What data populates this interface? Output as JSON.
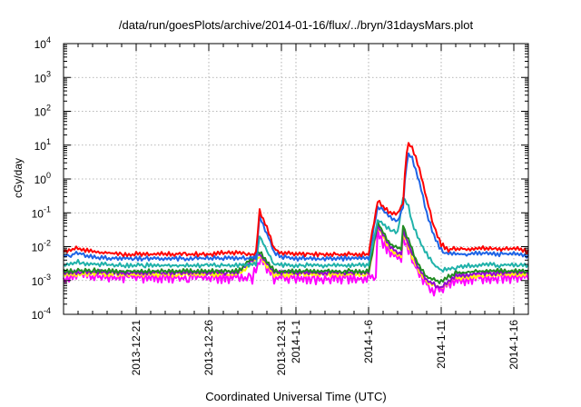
{
  "chart_data": {
    "type": "line",
    "title": "/data/run/goesPlots/archive/2014-01-16/flux/../bryn/31daysMars.plot",
    "xlabel": "Coordinated Universal Time (UTC)",
    "ylabel": "cGy/day",
    "yscale": "log",
    "ylim": [
      0.0001,
      10000
    ],
    "y_ticks": [
      {
        "value": 0.0001,
        "mantissa": "10",
        "exp": "-4"
      },
      {
        "value": 0.001,
        "mantissa": "10",
        "exp": "-3"
      },
      {
        "value": 0.01,
        "mantissa": "10",
        "exp": "-2"
      },
      {
        "value": 0.1,
        "mantissa": "10",
        "exp": "-1"
      },
      {
        "value": 1,
        "mantissa": "10",
        "exp": "0"
      },
      {
        "value": 10,
        "mantissa": "10",
        "exp": "1"
      },
      {
        "value": 100,
        "mantissa": "10",
        "exp": "2"
      },
      {
        "value": 1000,
        "mantissa": "10",
        "exp": "3"
      },
      {
        "value": 10000,
        "mantissa": "10",
        "exp": "4"
      }
    ],
    "xlim": [
      "2013-12-16",
      "2014-01-17"
    ],
    "x_ticks": [
      "2013-12-21",
      "2013-12-26",
      "2013-12-31",
      "2014-1-1",
      "2014-1-6",
      "2014-1-11",
      "2014-1-16"
    ],
    "x_tick_dates": [
      "2013-12-21",
      "2013-12-26",
      "2013-12-31",
      "2014-01-01",
      "2014-01-06",
      "2014-01-11",
      "2014-01-16"
    ],
    "grid": true,
    "legend": "none",
    "series": [
      {
        "color": "#ff00ff",
        "points": [
          [
            "2013-12-16",
            0.0012
          ],
          [
            "2013-12-17",
            0.0016
          ],
          [
            "2013-12-18",
            0.0013
          ],
          [
            "2013-12-19",
            0.0012
          ],
          [
            "2013-12-20",
            0.0013
          ],
          [
            "2013-12-21",
            0.0013
          ],
          [
            "2013-12-22",
            0.0012
          ],
          [
            "2013-12-23",
            0.0013
          ],
          [
            "2013-12-24",
            0.0012
          ],
          [
            "2013-12-25",
            0.0013
          ],
          [
            "2013-12-26",
            0.0012
          ],
          [
            "2013-12-27",
            0.0012
          ],
          [
            "2013-12-28",
            0.0013
          ],
          [
            "2013-12-29",
            0.0012
          ],
          [
            "2013-12-29T12:00",
            0.0045
          ],
          [
            "2013-12-30",
            0.0025
          ],
          [
            "2013-12-30T12:00",
            0.0012
          ],
          [
            "2014-01-01",
            0.0012
          ],
          [
            "2014-01-02",
            0.0012
          ],
          [
            "2014-01-03",
            0.0011
          ],
          [
            "2014-01-04",
            0.0012
          ],
          [
            "2014-01-05",
            0.0012
          ],
          [
            "2014-01-06",
            0.0012
          ],
          [
            "2014-01-06T12:00",
            0.0013
          ],
          [
            "2014-01-06T15:00",
            0.035
          ],
          [
            "2014-01-07",
            0.012
          ],
          [
            "2014-01-07T12:00",
            0.007
          ],
          [
            "2014-01-08",
            0.005
          ],
          [
            "2014-01-08T06:00",
            0.004
          ],
          [
            "2014-01-08T09:00",
            0.022
          ],
          [
            "2014-01-09",
            0.004
          ],
          [
            "2014-01-09T12:00",
            0.0015
          ],
          [
            "2014-01-10",
            0.0008
          ],
          [
            "2014-01-10T12:00",
            0.0005
          ],
          [
            "2014-01-11",
            0.0005
          ],
          [
            "2014-01-11T12:00",
            0.0008
          ],
          [
            "2014-01-12",
            0.001
          ],
          [
            "2014-01-13",
            0.0011
          ],
          [
            "2014-01-14",
            0.0012
          ],
          [
            "2014-01-15",
            0.0012
          ],
          [
            "2014-01-16",
            0.0012
          ],
          [
            "2014-01-17",
            0.0012
          ]
        ]
      },
      {
        "color": "#ffff00",
        "points": [
          [
            "2013-12-16",
            0.0015
          ],
          [
            "2013-12-18",
            0.0016
          ],
          [
            "2013-12-20",
            0.0015
          ],
          [
            "2013-12-22",
            0.0015
          ],
          [
            "2013-12-24",
            0.0015
          ],
          [
            "2013-12-26",
            0.0015
          ],
          [
            "2013-12-28",
            0.0015
          ],
          [
            "2013-12-29T12:00",
            0.005
          ],
          [
            "2013-12-30T12:00",
            0.0015
          ],
          [
            "2014-01-02",
            0.0015
          ],
          [
            "2014-01-04",
            0.0015
          ],
          [
            "2014-01-06",
            0.0015
          ],
          [
            "2014-01-06T15:00",
            0.04
          ],
          [
            "2014-01-07T12:00",
            0.008
          ],
          [
            "2014-01-08T06:00",
            0.005
          ],
          [
            "2014-01-08T09:00",
            0.025
          ],
          [
            "2014-01-09",
            0.005
          ],
          [
            "2014-01-09T12:00",
            0.0018
          ],
          [
            "2014-01-10",
            0.0009
          ],
          [
            "2014-01-11",
            0.0006
          ],
          [
            "2014-01-11T12:00",
            0.0009
          ],
          [
            "2014-01-12",
            0.0012
          ],
          [
            "2014-01-14",
            0.0014
          ],
          [
            "2014-01-16",
            0.0015
          ],
          [
            "2014-01-17",
            0.0015
          ]
        ]
      },
      {
        "color": "#9400d3",
        "points": [
          [
            "2013-12-16",
            0.0017
          ],
          [
            "2013-12-18",
            0.0018
          ],
          [
            "2013-12-20",
            0.0017
          ],
          [
            "2013-12-22",
            0.0017
          ],
          [
            "2013-12-24",
            0.0017
          ],
          [
            "2013-12-26",
            0.0017
          ],
          [
            "2013-12-28",
            0.0017
          ],
          [
            "2013-12-29T12:00",
            0.006
          ],
          [
            "2013-12-30T12:00",
            0.0017
          ],
          [
            "2014-01-02",
            0.0017
          ],
          [
            "2014-01-04",
            0.0017
          ],
          [
            "2014-01-06",
            0.0017
          ],
          [
            "2014-01-06T15:00",
            0.045
          ],
          [
            "2014-01-07T12:00",
            0.009
          ],
          [
            "2014-01-08T06:00",
            0.006
          ],
          [
            "2014-01-08T09:00",
            0.03
          ],
          [
            "2014-01-09",
            0.006
          ],
          [
            "2014-01-09T12:00",
            0.002
          ],
          [
            "2014-01-10",
            0.001
          ],
          [
            "2014-01-11",
            0.0006
          ],
          [
            "2014-01-11T12:00",
            0.001
          ],
          [
            "2014-01-12",
            0.0014
          ],
          [
            "2014-01-14",
            0.0016
          ],
          [
            "2014-01-16",
            0.0017
          ],
          [
            "2014-01-17",
            0.0017
          ]
        ]
      },
      {
        "color": "#228b22",
        "points": [
          [
            "2013-12-16",
            0.0019
          ],
          [
            "2013-12-18",
            0.002
          ],
          [
            "2013-12-20",
            0.0019
          ],
          [
            "2013-12-22",
            0.0019
          ],
          [
            "2013-12-24",
            0.0019
          ],
          [
            "2013-12-26",
            0.0019
          ],
          [
            "2013-12-28",
            0.0019
          ],
          [
            "2013-12-29T12:00",
            0.007
          ],
          [
            "2013-12-30T12:00",
            0.0019
          ],
          [
            "2014-01-02",
            0.0019
          ],
          [
            "2014-01-04",
            0.0019
          ],
          [
            "2014-01-06",
            0.0019
          ],
          [
            "2014-01-06T15:00",
            0.05
          ],
          [
            "2014-01-07T12:00",
            0.012
          ],
          [
            "2014-01-08T06:00",
            0.008
          ],
          [
            "2014-01-08T09:00",
            0.04
          ],
          [
            "2014-01-09",
            0.008
          ],
          [
            "2014-01-09T12:00",
            0.0025
          ],
          [
            "2014-01-10",
            0.0013
          ],
          [
            "2014-01-11",
            0.0009
          ],
          [
            "2014-01-11T12:00",
            0.0013
          ],
          [
            "2014-01-12",
            0.0017
          ],
          [
            "2014-01-14",
            0.0019
          ],
          [
            "2014-01-16",
            0.0019
          ],
          [
            "2014-01-17",
            0.0019
          ]
        ]
      },
      {
        "color": "#20b2aa",
        "points": [
          [
            "2013-12-16",
            0.0028
          ],
          [
            "2013-12-17",
            0.0035
          ],
          [
            "2013-12-18",
            0.003
          ],
          [
            "2013-12-20",
            0.0028
          ],
          [
            "2013-12-22",
            0.0028
          ],
          [
            "2013-12-24",
            0.0028
          ],
          [
            "2013-12-26",
            0.0028
          ],
          [
            "2013-12-28",
            0.0028
          ],
          [
            "2013-12-29T06:00",
            0.003
          ],
          [
            "2013-12-29T12:00",
            0.02
          ],
          [
            "2013-12-30",
            0.008
          ],
          [
            "2013-12-30T12:00",
            0.003
          ],
          [
            "2014-01-01",
            0.0028
          ],
          [
            "2014-01-03",
            0.0028
          ],
          [
            "2014-01-05",
            0.0028
          ],
          [
            "2014-01-06",
            0.0028
          ],
          [
            "2014-01-06T15:00",
            0.06
          ],
          [
            "2014-01-07T12:00",
            0.03
          ],
          [
            "2014-01-08",
            0.025
          ],
          [
            "2014-01-08T09:00",
            0.28
          ],
          [
            "2014-01-08T18:00",
            0.15
          ],
          [
            "2014-01-09",
            0.05
          ],
          [
            "2014-01-09T12:00",
            0.015
          ],
          [
            "2014-01-10",
            0.006
          ],
          [
            "2014-01-10T12:00",
            0.003
          ],
          [
            "2014-01-11",
            0.002
          ],
          [
            "2014-01-12",
            0.0024
          ],
          [
            "2014-01-13",
            0.0028
          ],
          [
            "2014-01-14",
            0.003
          ],
          [
            "2014-01-15",
            0.0028
          ],
          [
            "2014-01-16",
            0.003
          ],
          [
            "2014-01-17",
            0.0028
          ]
        ]
      },
      {
        "color": "#1e64e6",
        "points": [
          [
            "2013-12-16",
            0.005
          ],
          [
            "2013-12-17",
            0.0065
          ],
          [
            "2013-12-18",
            0.005
          ],
          [
            "2013-12-19",
            0.0046
          ],
          [
            "2013-12-20",
            0.0045
          ],
          [
            "2013-12-21",
            0.0045
          ],
          [
            "2013-12-22",
            0.0044
          ],
          [
            "2013-12-23",
            0.0045
          ],
          [
            "2013-12-24",
            0.0045
          ],
          [
            "2013-12-25",
            0.0045
          ],
          [
            "2013-12-26",
            0.0045
          ],
          [
            "2013-12-27",
            0.0045
          ],
          [
            "2013-12-28",
            0.0046
          ],
          [
            "2013-12-29",
            0.0045
          ],
          [
            "2013-12-29T06:00",
            0.005
          ],
          [
            "2013-12-29T12:00",
            0.08
          ],
          [
            "2013-12-30",
            0.025
          ],
          [
            "2013-12-30T12:00",
            0.007
          ],
          [
            "2013-12-31",
            0.005
          ],
          [
            "2014-01-01",
            0.0045
          ],
          [
            "2014-01-02",
            0.0045
          ],
          [
            "2014-01-03",
            0.0044
          ],
          [
            "2014-01-04",
            0.0045
          ],
          [
            "2014-01-05",
            0.0045
          ],
          [
            "2014-01-06",
            0.0045
          ],
          [
            "2014-01-06T15:00",
            0.15
          ],
          [
            "2014-01-07",
            0.12
          ],
          [
            "2014-01-07T12:00",
            0.07
          ],
          [
            "2014-01-08",
            0.06
          ],
          [
            "2014-01-08T09:00",
            0.15
          ],
          [
            "2014-01-08T14:00",
            2.5
          ],
          [
            "2014-01-08T18:00",
            5.5
          ],
          [
            "2014-01-09",
            4
          ],
          [
            "2014-01-09T12:00",
            0.8
          ],
          [
            "2014-01-10",
            0.1
          ],
          [
            "2014-01-10T12:00",
            0.02
          ],
          [
            "2014-01-11",
            0.008
          ],
          [
            "2014-01-11T12:00",
            0.006
          ],
          [
            "2014-01-12",
            0.006
          ],
          [
            "2014-01-13",
            0.006
          ],
          [
            "2014-01-14",
            0.0065
          ],
          [
            "2014-01-15",
            0.006
          ],
          [
            "2014-01-16",
            0.0065
          ],
          [
            "2014-01-17",
            0.005
          ]
        ]
      },
      {
        "color": "#ff0000",
        "points": [
          [
            "2013-12-16",
            0.007
          ],
          [
            "2013-12-17",
            0.009
          ],
          [
            "2013-12-18",
            0.007
          ],
          [
            "2013-12-19",
            0.0065
          ],
          [
            "2013-12-20",
            0.006
          ],
          [
            "2013-12-21",
            0.006
          ],
          [
            "2013-12-22",
            0.006
          ],
          [
            "2013-12-23",
            0.006
          ],
          [
            "2013-12-24",
            0.006
          ],
          [
            "2013-12-25",
            0.006
          ],
          [
            "2013-12-26",
            0.006
          ],
          [
            "2013-12-27",
            0.0065
          ],
          [
            "2013-12-28",
            0.0065
          ],
          [
            "2013-12-29",
            0.006
          ],
          [
            "2013-12-29T06:00",
            0.007
          ],
          [
            "2013-12-29T12:00",
            0.11
          ],
          [
            "2013-12-30",
            0.035
          ],
          [
            "2013-12-30T12:00",
            0.009
          ],
          [
            "2013-12-31",
            0.0065
          ],
          [
            "2014-01-01",
            0.006
          ],
          [
            "2014-01-02",
            0.006
          ],
          [
            "2014-01-03",
            0.006
          ],
          [
            "2014-01-04",
            0.006
          ],
          [
            "2014-01-05",
            0.006
          ],
          [
            "2014-01-06",
            0.006
          ],
          [
            "2014-01-06T15:00",
            0.22
          ],
          [
            "2014-01-07",
            0.16
          ],
          [
            "2014-01-07T12:00",
            0.1
          ],
          [
            "2014-01-08",
            0.09
          ],
          [
            "2014-01-08T09:00",
            0.2
          ],
          [
            "2014-01-08T14:00",
            5
          ],
          [
            "2014-01-08T18:00",
            11
          ],
          [
            "2014-01-09",
            9
          ],
          [
            "2014-01-09T12:00",
            2
          ],
          [
            "2014-01-10",
            0.25
          ],
          [
            "2014-01-10T12:00",
            0.04
          ],
          [
            "2014-01-11",
            0.012
          ],
          [
            "2014-01-11T12:00",
            0.008
          ],
          [
            "2014-01-12",
            0.009
          ],
          [
            "2014-01-13",
            0.008
          ],
          [
            "2014-01-14",
            0.009
          ],
          [
            "2014-01-15",
            0.008
          ],
          [
            "2014-01-16",
            0.009
          ],
          [
            "2014-01-17",
            0.007
          ]
        ]
      }
    ]
  }
}
